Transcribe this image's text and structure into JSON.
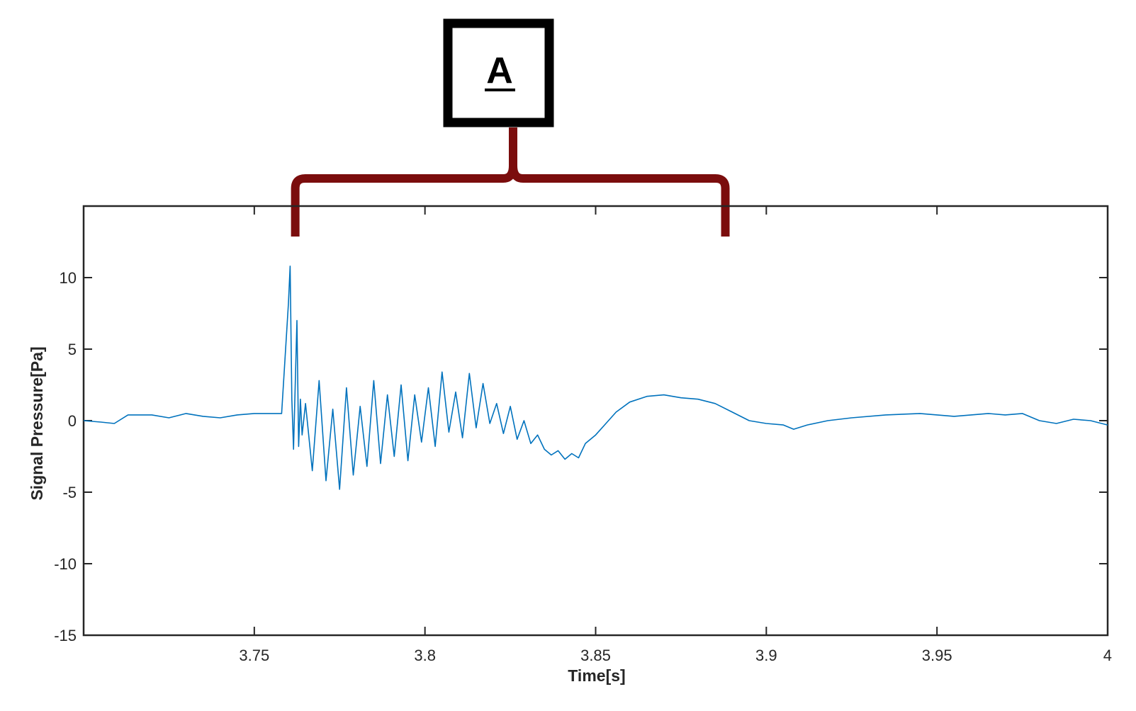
{
  "chart_data": {
    "type": "line",
    "title": "",
    "xlabel": "Time[s]",
    "ylabel": "Signal Pressure[Pa]",
    "xlim": [
      3.7,
      4.0
    ],
    "ylim": [
      -15,
      15
    ],
    "xticks": [
      3.75,
      3.8,
      3.85,
      3.9,
      3.95,
      4.0
    ],
    "xtick_labels": [
      "3.75",
      "3.8",
      "3.85",
      "3.9",
      "3.95",
      "4"
    ],
    "yticks": [
      10,
      5,
      0,
      -5,
      -10,
      -15
    ],
    "ytick_labels": [
      "10",
      "5",
      "0",
      "-5",
      "-10",
      "-15"
    ],
    "grid": false,
    "series": [
      {
        "color": "#0072BD",
        "x": [
          3.7,
          3.705,
          3.709,
          3.713,
          3.72,
          3.725,
          3.73,
          3.735,
          3.74,
          3.745,
          3.75,
          3.755,
          3.758,
          3.76,
          3.7605,
          3.761,
          3.7615,
          3.7625,
          3.763,
          3.7635,
          3.764,
          3.765,
          3.767,
          3.769,
          3.771,
          3.773,
          3.775,
          3.777,
          3.779,
          3.781,
          3.783,
          3.785,
          3.787,
          3.789,
          3.791,
          3.793,
          3.795,
          3.797,
          3.799,
          3.801,
          3.803,
          3.805,
          3.807,
          3.809,
          3.811,
          3.813,
          3.815,
          3.817,
          3.819,
          3.821,
          3.823,
          3.825,
          3.827,
          3.829,
          3.831,
          3.833,
          3.835,
          3.837,
          3.839,
          3.841,
          3.843,
          3.845,
          3.847,
          3.85,
          3.853,
          3.856,
          3.86,
          3.865,
          3.87,
          3.875,
          3.88,
          3.885,
          3.89,
          3.895,
          3.9,
          3.905,
          3.908,
          3.912,
          3.918,
          3.925,
          3.935,
          3.945,
          3.955,
          3.965,
          3.97,
          3.975,
          3.98,
          3.985,
          3.99,
          3.995,
          4.0
        ],
        "y": [
          0.0,
          -0.1,
          -0.2,
          0.4,
          0.4,
          0.2,
          0.5,
          0.3,
          0.2,
          0.4,
          0.5,
          0.5,
          0.5,
          8.2,
          10.8,
          1.5,
          -2.0,
          7.0,
          -1.8,
          1.5,
          -1.0,
          1.2,
          -3.5,
          2.8,
          -4.2,
          0.8,
          -4.8,
          2.3,
          -3.8,
          1.0,
          -3.2,
          2.8,
          -3.0,
          1.8,
          -2.5,
          2.5,
          -2.8,
          1.8,
          -1.5,
          2.3,
          -1.8,
          3.4,
          -0.8,
          2.0,
          -1.2,
          3.3,
          -0.5,
          2.6,
          -0.2,
          1.2,
          -0.9,
          1.0,
          -1.3,
          0.0,
          -1.6,
          -1.0,
          -2.0,
          -2.4,
          -2.1,
          -2.7,
          -2.3,
          -2.6,
          -1.6,
          -1.0,
          -0.2,
          0.6,
          1.3,
          1.7,
          1.8,
          1.6,
          1.5,
          1.2,
          0.6,
          0.0,
          -0.2,
          -0.3,
          -0.6,
          -0.3,
          0.0,
          0.2,
          0.4,
          0.5,
          0.3,
          0.5,
          0.4,
          0.5,
          0.0,
          -0.2,
          0.1,
          0.0,
          -0.3
        ]
      }
    ]
  },
  "annotation": {
    "label": "A",
    "color": "#7B0D0D",
    "x_start": 3.762,
    "x_end": 3.888
  }
}
